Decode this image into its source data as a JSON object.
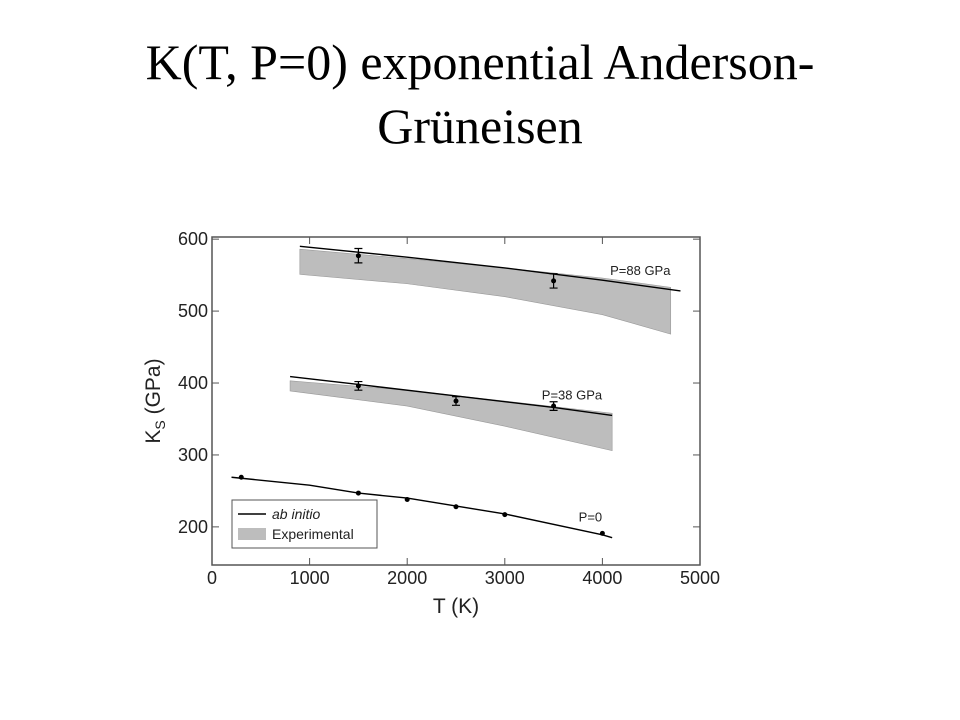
{
  "chart_data": {
    "type": "line",
    "title": "K(T, P=0) exponential Anderson-Grüneisen",
    "xlabel": "T (K)",
    "ylabel": {
      "main": "K",
      "sub": "S",
      "rest": " (GPa)"
    },
    "xlim": [
      0,
      5000
    ],
    "ylim": [
      147,
      603
    ],
    "xticks": [
      0,
      1000,
      2000,
      3000,
      4000,
      5000
    ],
    "yticks": [
      200,
      300,
      400,
      500,
      600
    ],
    "legend": [
      {
        "label": "ab initio",
        "color": "#000000"
      },
      {
        "label": "Experimental",
        "color": "#bdbdbd"
      }
    ],
    "ab_initio": [
      {
        "label": "P=88 GPa",
        "x": [
          900,
          2000,
          3000,
          4000,
          4800
        ],
        "values": [
          590,
          575,
          560,
          543,
          528
        ]
      },
      {
        "label": "P=38 GPa",
        "x": [
          800,
          1500,
          2500,
          3500,
          4100
        ],
        "values": [
          409,
          398,
          382,
          366,
          355
        ]
      },
      {
        "label": "P=0",
        "x": [
          200,
          1000,
          1500,
          2000,
          3000,
          4000,
          4100
        ],
        "values": [
          269,
          258,
          247,
          240,
          218,
          189,
          185
        ]
      }
    ],
    "experimental": [
      {
        "x": [
          900,
          2000,
          3000,
          4000,
          4700
        ],
        "upper": [
          586,
          573,
          560,
          546,
          533
        ],
        "lower": [
          551,
          538,
          520,
          495,
          468
        ]
      },
      {
        "x": [
          800,
          2000,
          3000,
          4100
        ],
        "upper": [
          403,
          390,
          375,
          358
        ],
        "lower": [
          389,
          368,
          340,
          306
        ]
      }
    ],
    "points": [
      {
        "x": [
          1500,
          3500
        ],
        "values": [
          577,
          542
        ],
        "errors": [
          10,
          10
        ]
      },
      {
        "x": [
          1500,
          2500,
          3500
        ],
        "values": [
          396,
          375,
          368
        ],
        "errors": [
          6,
          6,
          6
        ]
      },
      {
        "x": [
          300,
          1500,
          2000,
          2500,
          3000,
          4000
        ],
        "values": [
          269,
          247,
          238,
          228,
          217,
          191
        ]
      }
    ]
  }
}
